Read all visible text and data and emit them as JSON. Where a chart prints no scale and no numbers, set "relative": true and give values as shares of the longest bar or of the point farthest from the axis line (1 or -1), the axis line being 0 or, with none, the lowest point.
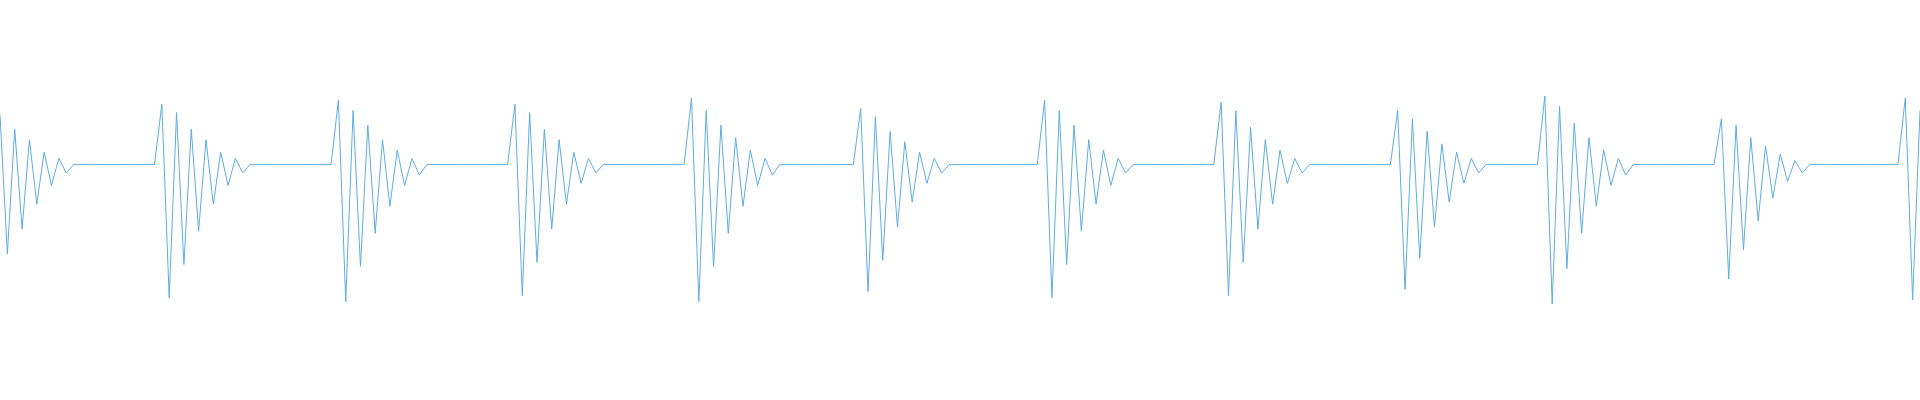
{
  "chart_data": {
    "type": "line",
    "relative": true,
    "marker": "none",
    "categories": [
      null,
      null,
      null,
      null,
      null,
      null,
      null,
      null,
      null,
      null,
      null,
      null,
      null,
      null,
      null,
      null,
      null,
      null,
      null,
      null,
      null,
      null,
      null,
      null,
      null,
      null,
      null,
      null,
      null,
      null,
      null,
      null,
      null,
      null,
      null,
      null,
      null,
      null,
      null,
      null,
      null,
      null,
      null,
      null,
      null,
      null,
      null,
      null,
      null,
      null,
      null,
      null,
      null,
      null,
      null,
      null,
      null,
      null,
      null,
      null,
      null,
      null,
      null,
      null,
      null,
      null,
      null,
      null,
      null,
      null,
      null,
      null,
      null,
      null,
      null,
      null,
      null,
      null,
      null,
      null,
      null,
      null,
      null,
      null,
      null,
      null,
      null,
      null,
      null,
      null,
      null,
      null,
      null,
      null,
      null,
      null,
      null,
      null,
      null,
      null,
      null,
      null,
      null,
      null,
      null,
      null,
      null,
      null,
      null,
      null,
      null,
      null,
      null,
      null,
      null,
      null,
      null,
      null,
      null,
      null,
      null,
      null,
      null,
      null,
      null,
      null,
      null,
      null,
      null,
      null,
      null,
      null,
      null,
      null,
      null,
      null,
      null,
      null,
      null,
      null,
      null,
      null,
      null,
      null,
      null,
      null,
      null,
      null,
      null,
      null,
      null,
      null,
      null,
      null,
      null,
      null,
      null,
      null,
      null,
      null,
      null,
      null,
      null,
      null,
      null,
      null,
      null,
      null,
      null,
      null,
      null,
      null,
      null,
      null,
      null,
      null,
      null,
      null,
      null,
      null,
      null,
      null,
      null,
      null,
      null,
      null,
      null,
      null,
      null,
      null,
      null,
      null,
      null,
      null,
      null,
      null,
      null,
      null,
      null,
      null,
      null,
      null,
      null,
      null,
      null,
      null,
      null,
      null,
      null,
      null,
      null,
      null,
      null,
      null,
      null,
      null,
      null,
      null,
      null,
      null,
      null,
      null,
      null,
      null,
      null,
      null,
      null,
      null,
      null,
      null,
      null,
      null,
      null,
      null,
      null,
      null,
      null,
      null,
      null,
      null,
      null,
      null,
      null,
      null,
      null,
      null,
      null,
      null,
      null,
      null,
      null,
      null,
      null,
      null,
      null,
      null,
      null,
      null,
      null,
      null,
      null,
      null
    ],
    "series": [
      {
        "color": "#5dade2",
        "values": [
          0.91,
          0.24,
          0.84,
          0.36,
          0.79,
          0.48,
          0.73,
          0.57,
          0.7,
          0.63,
          0.67,
          0.67,
          0.67,
          0.67,
          0.67,
          0.67,
          0.67,
          0.67,
          0.67,
          0.67,
          0.67,
          0.67,
          0.96,
          0.03,
          0.92,
          0.19,
          0.84,
          0.35,
          0.79,
          0.48,
          0.73,
          0.57,
          0.7,
          0.63,
          0.67,
          0.67,
          0.67,
          0.67,
          0.67,
          0.67,
          0.67,
          0.67,
          0.67,
          0.67,
          0.67,
          0.67,
          0.98,
          0.01,
          0.93,
          0.18,
          0.86,
          0.34,
          0.79,
          0.47,
          0.74,
          0.57,
          0.7,
          0.62,
          0.67,
          0.67,
          0.67,
          0.67,
          0.67,
          0.67,
          0.67,
          0.67,
          0.67,
          0.67,
          0.67,
          0.67,
          0.96,
          0.04,
          0.92,
          0.2,
          0.84,
          0.36,
          0.79,
          0.48,
          0.73,
          0.58,
          0.7,
          0.63,
          0.67,
          0.67,
          0.67,
          0.67,
          0.67,
          0.67,
          0.67,
          0.67,
          0.67,
          0.67,
          0.67,
          0.67,
          0.99,
          0.01,
          0.93,
          0.18,
          0.86,
          0.34,
          0.8,
          0.47,
          0.74,
          0.57,
          0.7,
          0.62,
          0.67,
          0.67,
          0.67,
          0.67,
          0.67,
          0.67,
          0.67,
          0.67,
          0.67,
          0.67,
          0.67,
          0.94,
          0.06,
          0.9,
          0.21,
          0.83,
          0.37,
          0.78,
          0.49,
          0.73,
          0.58,
          0.7,
          0.63,
          0.67,
          0.67,
          0.67,
          0.67,
          0.67,
          0.67,
          0.67,
          0.67,
          0.67,
          0.67,
          0.67,
          0.67,
          0.67,
          0.98,
          0.03,
          0.93,
          0.19,
          0.86,
          0.35,
          0.79,
          0.48,
          0.74,
          0.57,
          0.7,
          0.63,
          0.67,
          0.67,
          0.67,
          0.67,
          0.67,
          0.67,
          0.67,
          0.67,
          0.67,
          0.67,
          0.67,
          0.67,
          0.97,
          0.04,
          0.93,
          0.2,
          0.85,
          0.36,
          0.79,
          0.48,
          0.74,
          0.58,
          0.7,
          0.63,
          0.67,
          0.67,
          0.67,
          0.67,
          0.67,
          0.67,
          0.67,
          0.67,
          0.67,
          0.67,
          0.67,
          0.67,
          0.93,
          0.07,
          0.89,
          0.22,
          0.83,
          0.37,
          0.77,
          0.49,
          0.73,
          0.58,
          0.7,
          0.63,
          0.67,
          0.67,
          0.67,
          0.67,
          0.67,
          0.67,
          0.67,
          0.67,
          1,
          0,
          0.95,
          0.17,
          0.87,
          0.34,
          0.8,
          0.47,
          0.74,
          0.57,
          0.7,
          0.62,
          0.67,
          0.67,
          0.67,
          0.67,
          0.67,
          0.67,
          0.67,
          0.67,
          0.67,
          0.67,
          0.67,
          0.67,
          0.89,
          0.12,
          0.86,
          0.26,
          0.8,
          0.4,
          0.76,
          0.51,
          0.72,
          0.59,
          0.69,
          0.63,
          0.67,
          0.67,
          0.67,
          0.67,
          0.67,
          0.67,
          0.67,
          0.67,
          0.67,
          0.67,
          0.67,
          0.67,
          0.67,
          0.99,
          0.02,
          0.93
        ]
      }
    ]
  }
}
